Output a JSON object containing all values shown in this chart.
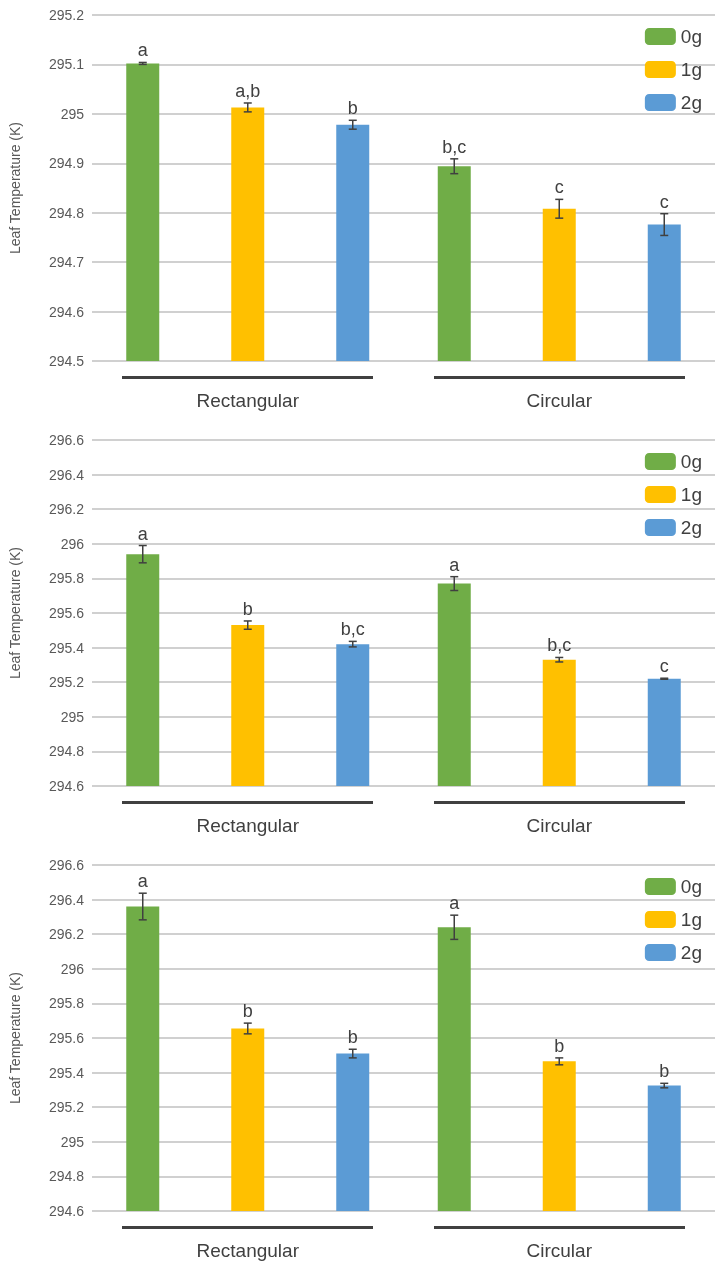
{
  "chart_data": [
    {
      "type": "bar",
      "ylabel": "Leaf Temperature (K)",
      "categories": [
        "Rectangular",
        "Circular"
      ],
      "grid": "y",
      "legend": "top right",
      "ylim": [
        294.5,
        295.2
      ],
      "yticks": [
        294.5,
        294.6,
        294.7,
        294.8,
        294.9,
        295,
        295.1,
        295.2
      ],
      "series": [
        {
          "name": "0g",
          "color": "#70ad47",
          "values": [
            295.102,
            294.894
          ],
          "errors": [
            0.002,
            0.015
          ]
        },
        {
          "name": "1g",
          "color": "#ffc000",
          "values": [
            295.013,
            294.808
          ],
          "errors": [
            0.009,
            0.019
          ]
        },
        {
          "name": "2g",
          "color": "#5b9bd5",
          "values": [
            294.978,
            294.776
          ],
          "errors": [
            0.009,
            0.022
          ]
        }
      ],
      "annotations": [
        "a",
        "a,b",
        "b",
        "b,c",
        "c",
        "c"
      ]
    },
    {
      "type": "bar",
      "ylabel": "Leaf Temperature (K)",
      "categories": [
        "Rectangular",
        "Circular"
      ],
      "grid": "y",
      "legend": "top right",
      "ylim": [
        294.6,
        296.6
      ],
      "yticks": [
        294.6,
        294.8,
        295,
        295.2,
        295.4,
        295.6,
        295.8,
        296,
        296.2,
        296.4,
        296.6
      ],
      "series": [
        {
          "name": "0g",
          "color": "#70ad47",
          "values": [
            295.94,
            295.77
          ],
          "errors": [
            0.05,
            0.04
          ]
        },
        {
          "name": "1g",
          "color": "#ffc000",
          "values": [
            295.53,
            295.33
          ],
          "errors": [
            0.024,
            0.013
          ]
        },
        {
          "name": "2g",
          "color": "#5b9bd5",
          "values": [
            295.42,
            295.22
          ],
          "errors": [
            0.016,
            0.003
          ]
        }
      ],
      "annotations": [
        "a",
        "b",
        "b,c",
        "a",
        "b,c",
        "c"
      ]
    },
    {
      "type": "bar",
      "ylabel": "Leaf Temperature (K)",
      "categories": [
        "Rectangular",
        "Circular"
      ],
      "grid": "y",
      "legend": "top right",
      "ylim": [
        294.6,
        296.6
      ],
      "yticks": [
        294.6,
        294.8,
        295,
        295.2,
        295.4,
        295.6,
        295.8,
        296,
        296.2,
        296.4,
        296.6
      ],
      "series": [
        {
          "name": "0g",
          "color": "#70ad47",
          "values": [
            296.36,
            296.24
          ],
          "errors": [
            0.077,
            0.07
          ]
        },
        {
          "name": "1g",
          "color": "#ffc000",
          "values": [
            295.655,
            295.465
          ],
          "errors": [
            0.031,
            0.02
          ]
        },
        {
          "name": "2g",
          "color": "#5b9bd5",
          "values": [
            295.51,
            295.325
          ],
          "errors": [
            0.025,
            0.013
          ]
        }
      ],
      "annotations": [
        "a",
        "b",
        "b",
        "a",
        "b",
        "b"
      ]
    }
  ]
}
